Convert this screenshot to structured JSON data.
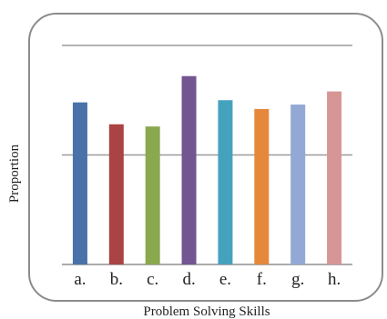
{
  "chart_data": {
    "type": "bar",
    "xlabel": "Problem Solving Skills",
    "ylabel": "Proportion",
    "categories": [
      "a.",
      "b.",
      "c.",
      "d.",
      "e.",
      "f.",
      "g.",
      "h."
    ],
    "values": [
      0.74,
      0.64,
      0.63,
      0.86,
      0.75,
      0.71,
      0.73,
      0.79
    ],
    "ylim": [
      0,
      1
    ],
    "grid": true,
    "legend": "none",
    "colors": [
      "#4a72a9",
      "#aa4343",
      "#8aa84e",
      "#735691",
      "#45a2bd",
      "#e5883b",
      "#93a8d5",
      "#d89595"
    ]
  }
}
